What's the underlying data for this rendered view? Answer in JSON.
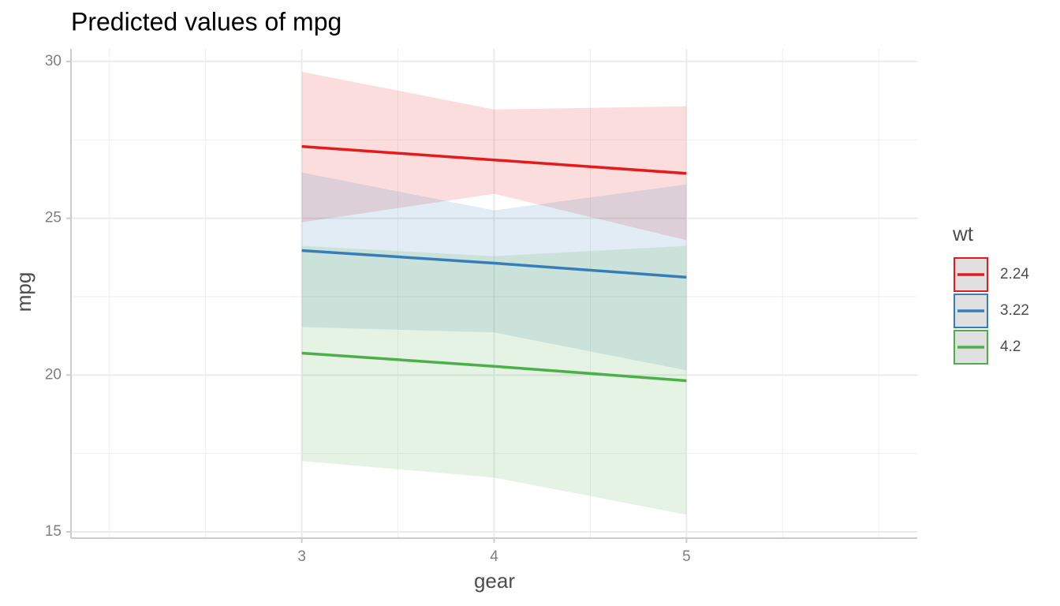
{
  "chart_data": {
    "type": "line",
    "title": "Predicted values of mpg",
    "x_label": "gear",
    "y_label": "mpg",
    "legend_title": "wt",
    "legend": "right",
    "x": [
      3,
      4,
      5
    ],
    "xlim": [
      1.8,
      6.2
    ],
    "xticks": [
      3,
      4,
      5
    ],
    "xminor": [
      2,
      2.5,
      3.5,
      4.5,
      5.5,
      6
    ],
    "ylim": [
      14.8,
      30.4
    ],
    "yticks": [
      15,
      20,
      25,
      30
    ],
    "yminor": [
      17.5,
      22.5,
      27.5
    ],
    "grid": true,
    "series": [
      {
        "name": "2.24",
        "color": "#e41a1c",
        "values": [
          27.29,
          26.86,
          26.43
        ],
        "lower": [
          24.87,
          25.78,
          24.3
        ],
        "upper": [
          29.67,
          28.47,
          28.57
        ]
      },
      {
        "name": "3.22",
        "color": "#377eb8",
        "values": [
          23.97,
          23.57,
          23.12
        ],
        "lower": [
          21.53,
          21.36,
          20.15
        ],
        "upper": [
          26.46,
          25.25,
          26.08
        ]
      },
      {
        "name": "4.2",
        "color": "#4daf4a",
        "values": [
          20.7,
          20.28,
          19.82
        ],
        "lower": [
          17.26,
          16.73,
          15.55
        ],
        "upper": [
          24.12,
          23.79,
          24.12
        ]
      }
    ]
  }
}
